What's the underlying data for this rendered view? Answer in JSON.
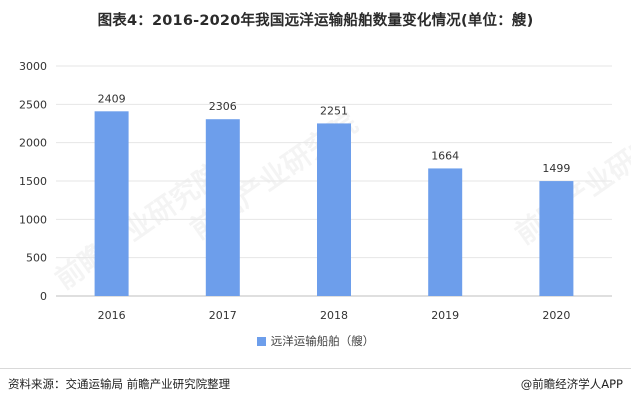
{
  "title": "图表4：2016-2020年我国远洋运输船舶数量变化情况(单位：艘)",
  "watermark_text": "前瞻产业研究院",
  "source": "资料来源：交通运输局 前瞻产业研究院整理",
  "brand": "@前瞻经济学人APP",
  "colors": {
    "bar": "#6d9eeb",
    "grid": "#e6e6e6",
    "axis": "#bfbfbf"
  },
  "chart_data": {
    "type": "bar",
    "categories": [
      "2016",
      "2017",
      "2018",
      "2019",
      "2020"
    ],
    "series": [
      {
        "name": "远洋运输船舶（艘）",
        "values": [
          2409,
          2306,
          2251,
          1664,
          1499
        ]
      }
    ],
    "ylim": [
      0,
      3000
    ],
    "yticks": [
      0,
      500,
      1000,
      1500,
      2000,
      2500,
      3000
    ],
    "grid": true,
    "legend_position": "bottom",
    "data_labels": true
  }
}
